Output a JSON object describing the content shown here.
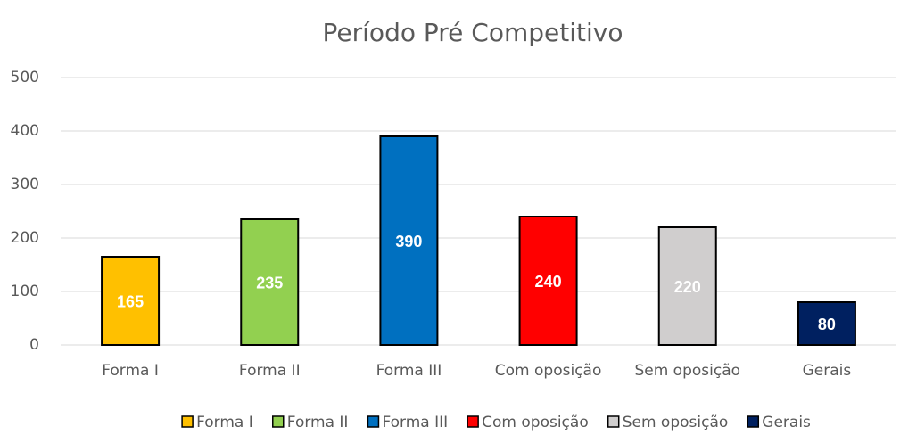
{
  "chart_data": {
    "type": "bar",
    "title": "Período Pré Competitivo",
    "categories": [
      "Forma I",
      "Forma II",
      "Forma III",
      "Com oposição",
      "Sem oposição",
      "Gerais"
    ],
    "values": [
      165,
      235,
      390,
      240,
      220,
      80
    ],
    "colors": [
      "#ffc000",
      "#92d050",
      "#0070c0",
      "#ff0000",
      "#d0cece",
      "#002060"
    ],
    "ylim": [
      0,
      500
    ],
    "yticks": [
      0,
      100,
      200,
      300,
      400,
      500
    ],
    "grid": true,
    "legend": "bottom"
  }
}
